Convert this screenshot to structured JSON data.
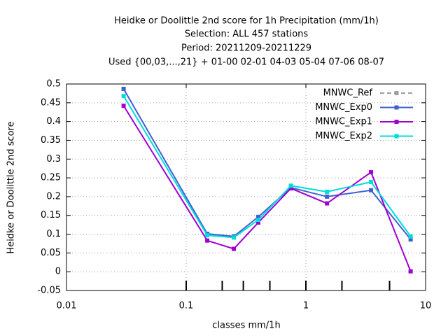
{
  "chart_data": {
    "type": "line",
    "title": "Heidke or Doolittle 2nd score  for 1h Precipitation (mm/1h)",
    "subtitle": [
      "Selection: ALL    457 stations",
      "Period: 20211209-20211229",
      "Used {00,03,...,21} + 01-00 02-01 04-03 05-04 07-06 08-07"
    ],
    "xlabel": "classes mm/1h",
    "ylabel": "Heidke or Doolittle 2nd score",
    "xlog": true,
    "grid": true,
    "legend": "top-right",
    "x": [
      0.03,
      0.15,
      0.25,
      0.4,
      0.75,
      1.5,
      3.5,
      7.5
    ],
    "xlim": [
      0.01,
      10
    ],
    "xticks": [
      0.01,
      0.1,
      1,
      10
    ],
    "class_ticks": [
      0.1,
      0.2,
      0.3,
      0.5,
      1,
      2,
      5
    ],
    "ylim": [
      -0.05,
      0.5
    ],
    "yticks": [
      0.5,
      0.45,
      0.4,
      0.35,
      0.3,
      0.25,
      0.2,
      0.15,
      0.1,
      0.05,
      0,
      -0.05
    ],
    "series": [
      {
        "name": "MNWC_Ref",
        "color": "#a0a0a0",
        "dash": true,
        "values": [
          null,
          null,
          null,
          null,
          null,
          null,
          null,
          null
        ]
      },
      {
        "name": "MNWC_Exp0",
        "color": "#4060d0",
        "values": [
          0.487,
          0.101,
          0.094,
          0.146,
          0.224,
          0.2,
          0.217,
          0.086
        ]
      },
      {
        "name": "MNWC_Exp1",
        "color": "#a000d0",
        "values": [
          0.442,
          0.083,
          0.061,
          0.131,
          0.222,
          0.182,
          0.265,
          0.001
        ]
      },
      {
        "name": "MNWC_Exp2",
        "color": "#00dcdc",
        "values": [
          0.468,
          0.097,
          0.091,
          0.138,
          0.229,
          0.213,
          0.239,
          0.094
        ]
      }
    ]
  }
}
